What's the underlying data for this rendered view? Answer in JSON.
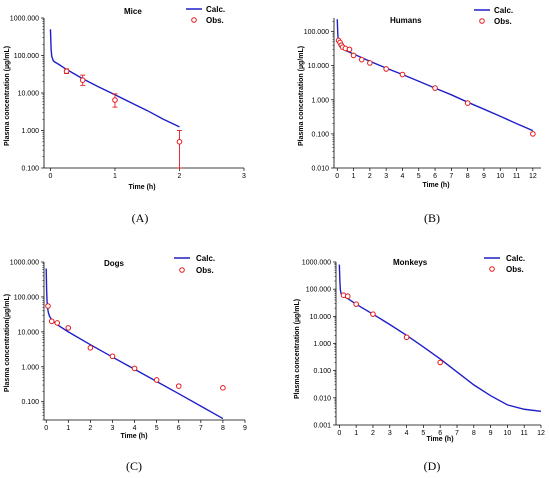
{
  "chart_data": [
    {
      "type": "line",
      "title": "Mice",
      "caption": "(A)",
      "xlabel": "Time (h)",
      "ylabel": "Plasma concentration (µg/mL)",
      "log_y": true,
      "xlim": [
        -0.1,
        3
      ],
      "ylim": [
        0.1,
        1000
      ],
      "xticks": [
        0,
        1,
        2,
        3
      ],
      "xtick_labels": [
        "0",
        "1",
        "2",
        "3"
      ],
      "yticks": [
        0.1,
        1,
        10,
        100,
        1000
      ],
      "ytick_labels": [
        "0.100",
        "1.000",
        "10.000",
        "100.000",
        "1000.000"
      ],
      "colors": {
        "calc": "#1f1fc8",
        "obs": "#e41a1c"
      },
      "series": [
        {
          "name": "Calc.",
          "kind": "line",
          "x": [
            0.0,
            0.01,
            0.02,
            0.04,
            0.06,
            0.1,
            0.15,
            0.2,
            0.3,
            0.5,
            0.75,
            1.0,
            1.25,
            1.5,
            1.75,
            2.0
          ],
          "y": [
            500,
            150,
            95,
            75,
            68,
            62,
            55,
            48,
            38,
            24,
            14.5,
            9,
            5.5,
            3.4,
            2.0,
            1.25
          ]
        },
        {
          "name": "Obs.",
          "kind": "scatter",
          "x": [
            0.25,
            0.5,
            1.0,
            2.0
          ],
          "y": [
            38,
            22,
            6.5,
            0.5
          ],
          "err_low": [
            33,
            16,
            4.2,
            0.1
          ],
          "err_high": [
            44,
            30,
            9.5,
            1.0
          ]
        }
      ]
    },
    {
      "type": "line",
      "title": "Humans",
      "caption": "(B)",
      "xlabel": "Time (h)",
      "ylabel": "Plasma concentration (µg/mL)",
      "log_y": true,
      "xlim": [
        -0.2,
        12.5
      ],
      "ylim": [
        0.01,
        250
      ],
      "xticks": [
        0,
        1,
        2,
        3,
        4,
        5,
        6,
        7,
        8,
        9,
        10,
        11,
        12
      ],
      "xtick_labels": [
        "0",
        "1",
        "2",
        "3",
        "4",
        "5",
        "6",
        "7",
        "8",
        "9",
        "10",
        "11",
        "12"
      ],
      "yticks": [
        0.01,
        0.1,
        1,
        10,
        100
      ],
      "ytick_labels": [
        "0.010",
        "0.100",
        "1.000",
        "10.000",
        "100.000"
      ],
      "colors": {
        "calc": "#1f1fc8",
        "obs": "#e41a1c"
      },
      "series": [
        {
          "name": "Calc.",
          "kind": "line",
          "x": [
            0.0,
            0.03,
            0.06,
            0.1,
            0.15,
            0.25,
            0.5,
            1,
            2,
            3,
            4,
            5,
            6,
            7,
            8,
            9,
            10,
            11,
            12
          ],
          "y": [
            230,
            90,
            55,
            42,
            37,
            33,
            28,
            22,
            13.5,
            8.5,
            5.5,
            3.5,
            2.2,
            1.4,
            0.85,
            0.53,
            0.33,
            0.2,
            0.125
          ]
        },
        {
          "name": "Obs.",
          "kind": "scatter",
          "x": [
            0.08,
            0.17,
            0.25,
            0.33,
            0.5,
            0.75,
            1,
            1.5,
            2,
            3,
            4,
            6,
            8,
            12
          ],
          "y": [
            55,
            48,
            40,
            35,
            32,
            30,
            20,
            15,
            12,
            8,
            5.5,
            2.2,
            0.8,
            0.1
          ]
        }
      ]
    },
    {
      "type": "line",
      "title": "Dogs",
      "caption": "(C)",
      "xlabel": "Time (h)",
      "ylabel": "Plasma concentration(µg/mL)",
      "log_y": true,
      "xlim": [
        -0.1,
        9
      ],
      "ylim": [
        0.03,
        1000
      ],
      "xticks": [
        0,
        1,
        2,
        3,
        4,
        5,
        6,
        7,
        8,
        9
      ],
      "xtick_labels": [
        "0",
        "1",
        "2",
        "3",
        "4",
        "5",
        "6",
        "7",
        "8",
        "9"
      ],
      "yticks": [
        0.1,
        1,
        10,
        100,
        1000
      ],
      "ytick_labels": [
        "0.100",
        "1.000",
        "10.000",
        "100.000",
        "1000.000"
      ],
      "colors": {
        "calc": "#1f1fc8",
        "obs": "#e41a1c"
      },
      "series": [
        {
          "name": "Calc.",
          "kind": "line",
          "x": [
            0.0,
            0.02,
            0.04,
            0.07,
            0.1,
            0.15,
            0.25,
            0.5,
            1,
            2,
            3,
            4,
            5,
            6,
            7,
            8
          ],
          "y": [
            650,
            150,
            70,
            45,
            35,
            28,
            22,
            16,
            10,
            4.3,
            1.9,
            0.85,
            0.38,
            0.17,
            0.075,
            0.033
          ]
        },
        {
          "name": "Obs.",
          "kind": "scatter",
          "x": [
            0.08,
            0.25,
            0.5,
            1,
            2,
            3,
            4,
            5,
            6,
            8
          ],
          "y": [
            55,
            20,
            18,
            13,
            3.5,
            2.0,
            0.9,
            0.42,
            0.28,
            0.25
          ]
        }
      ]
    },
    {
      "type": "line",
      "title": "Monkeys",
      "caption": "(D)",
      "xlabel": "Time (h)",
      "ylabel": "Plasma concentration (µg/mL)",
      "log_y": true,
      "xlim": [
        -0.2,
        12
      ],
      "ylim": [
        0.001,
        1000
      ],
      "xticks": [
        0,
        1,
        2,
        3,
        4,
        5,
        6,
        7,
        8,
        9,
        10,
        11,
        12
      ],
      "xtick_labels": [
        "0",
        "1",
        "2",
        "3",
        "4",
        "5",
        "6",
        "7",
        "8",
        "9",
        "10",
        "11",
        "12"
      ],
      "yticks": [
        0.001,
        0.01,
        0.1,
        1,
        10,
        100,
        1000
      ],
      "ytick_labels": [
        "0.001",
        "0.010",
        "0.100",
        "1.000",
        "10.000",
        "100.000",
        "1000.000"
      ],
      "colors": {
        "calc": "#1f1fc8",
        "obs": "#e41a1c"
      },
      "series": [
        {
          "name": "Calc.",
          "kind": "line",
          "x": [
            0.0,
            0.03,
            0.06,
            0.1,
            0.15,
            0.25,
            0.5,
            1,
            2,
            3,
            4,
            5,
            6,
            7,
            8,
            9,
            10,
            11,
            12
          ],
          "y": [
            800,
            200,
            95,
            70,
            60,
            55,
            45,
            28,
            12,
            5,
            2,
            0.75,
            0.27,
            0.09,
            0.03,
            0.012,
            0.0055,
            0.0038,
            0.0032
          ]
        },
        {
          "name": "Obs.",
          "kind": "scatter",
          "x": [
            0.25,
            0.5,
            1,
            2,
            4,
            6
          ],
          "y": [
            60,
            55,
            28,
            12,
            1.7,
            0.2
          ]
        }
      ]
    }
  ]
}
